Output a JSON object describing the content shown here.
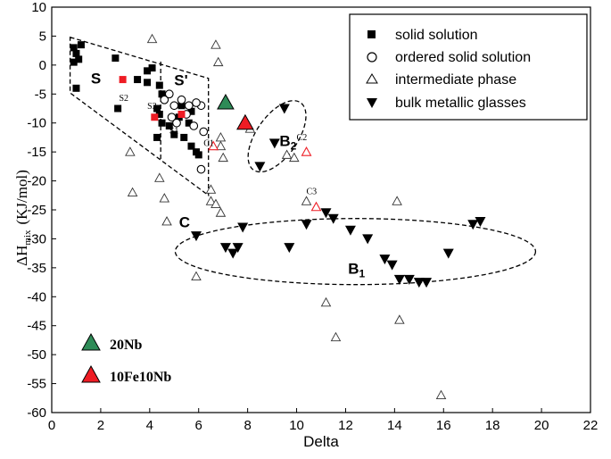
{
  "chart_data": {
    "type": "scatter",
    "xlabel": "Delta",
    "ylabel_main": "ΔH",
    "ylabel_sub": "mix",
    "ylabel_unit": "(KJ/mol)",
    "xlim": [
      0,
      22
    ],
    "ylim": [
      -60,
      10
    ],
    "xticks": [
      0,
      2,
      4,
      6,
      8,
      10,
      12,
      14,
      16,
      18,
      20,
      22
    ],
    "yticks": [
      10,
      5,
      0,
      -5,
      -10,
      -15,
      -20,
      -25,
      -30,
      -35,
      -40,
      -45,
      -50,
      -55,
      -60
    ],
    "legend_position": "top-right",
    "series": [
      {
        "name": "solid solution",
        "marker": "filled-square",
        "points": [
          [
            0.9,
            3.0
          ],
          [
            1.0,
            2.0
          ],
          [
            1.1,
            1.0
          ],
          [
            0.9,
            0.5
          ],
          [
            1.2,
            3.5
          ],
          [
            1.0,
            -4.0
          ],
          [
            2.6,
            1.2
          ],
          [
            2.7,
            -7.5
          ],
          [
            3.5,
            -2.5
          ],
          [
            3.9,
            -1.0
          ],
          [
            3.9,
            -3.0
          ],
          [
            4.1,
            -0.5
          ],
          [
            4.4,
            -3.5
          ],
          [
            4.5,
            -5.0
          ],
          [
            4.3,
            -7.5
          ],
          [
            4.4,
            -8.5
          ],
          [
            4.5,
            -10.0
          ],
          [
            4.3,
            -12.5
          ],
          [
            4.8,
            -10.5
          ],
          [
            5.2,
            -9.0
          ],
          [
            5.0,
            -12.0
          ],
          [
            5.4,
            -12.5
          ],
          [
            5.6,
            -10.0
          ],
          [
            5.7,
            -14.0
          ],
          [
            5.9,
            -15.0
          ],
          [
            6.0,
            -15.5
          ],
          [
            5.3,
            -7.0
          ],
          [
            5.7,
            -8.0
          ]
        ]
      },
      {
        "name": "ordered solid solution",
        "marker": "open-circle",
        "points": [
          [
            4.6,
            -6.0
          ],
          [
            4.8,
            -5.0
          ],
          [
            5.0,
            -7.0
          ],
          [
            5.3,
            -6.0
          ],
          [
            4.9,
            -9.0
          ],
          [
            5.1,
            -10.0
          ],
          [
            5.5,
            -8.5
          ],
          [
            5.6,
            -7.0
          ],
          [
            5.8,
            -10.5
          ],
          [
            6.1,
            -7.0
          ],
          [
            6.2,
            -11.5
          ],
          [
            6.1,
            -18.0
          ],
          [
            5.9,
            -6.5
          ]
        ]
      },
      {
        "name": "intermediate phase",
        "marker": "open-triangle",
        "points": [
          [
            4.1,
            4.5
          ],
          [
            6.7,
            3.5
          ],
          [
            6.8,
            0.5
          ],
          [
            6.9,
            -12.5
          ],
          [
            6.9,
            -14.0
          ],
          [
            7.0,
            -16.0
          ],
          [
            3.2,
            -15.0
          ],
          [
            3.3,
            -22.0
          ],
          [
            4.4,
            -19.5
          ],
          [
            4.6,
            -23.0
          ],
          [
            4.7,
            -27.0
          ],
          [
            6.5,
            -21.5
          ],
          [
            6.5,
            -23.5
          ],
          [
            6.7,
            -24.0
          ],
          [
            6.9,
            -25.5
          ],
          [
            5.9,
            -36.5
          ],
          [
            8.1,
            -11.0
          ],
          [
            9.6,
            -15.5
          ],
          [
            9.9,
            -16.0
          ],
          [
            10.4,
            -23.5
          ],
          [
            11.2,
            -41.0
          ],
          [
            11.6,
            -47.0
          ],
          [
            14.1,
            -23.5
          ],
          [
            14.2,
            -44.0
          ],
          [
            15.9,
            -57.0
          ]
        ]
      },
      {
        "name": "bulk metallic glasses",
        "marker": "filled-inverted-triangle",
        "points": [
          [
            5.9,
            -29.5
          ],
          [
            7.1,
            -31.5
          ],
          [
            7.4,
            -32.5
          ],
          [
            7.6,
            -31.5
          ],
          [
            7.8,
            -28.0
          ],
          [
            8.5,
            -17.5
          ],
          [
            9.5,
            -7.5
          ],
          [
            9.1,
            -13.5
          ],
          [
            9.7,
            -31.5
          ],
          [
            10.4,
            -27.5
          ],
          [
            11.2,
            -25.5
          ],
          [
            11.5,
            -26.5
          ],
          [
            12.2,
            -28.5
          ],
          [
            12.9,
            -30.0
          ],
          [
            13.6,
            -33.5
          ],
          [
            13.9,
            -34.5
          ],
          [
            14.2,
            -37.0
          ],
          [
            14.6,
            -37.0
          ],
          [
            15.0,
            -37.5
          ],
          [
            15.3,
            -37.5
          ],
          [
            16.2,
            -32.5
          ],
          [
            17.2,
            -27.5
          ],
          [
            17.5,
            -27.0
          ]
        ]
      },
      {
        "name": "20Nb",
        "marker": "filled-triangle-green",
        "color": "#2e8b57",
        "points": [
          [
            7.1,
            -6.5
          ]
        ]
      },
      {
        "name": "10Fe10Nb",
        "marker": "filled-triangle-red",
        "color": "#ee1c24",
        "points": [
          [
            7.9,
            -10.0
          ]
        ]
      },
      {
        "name": "red points",
        "marker": "mixed-red",
        "color": "#ee1c24",
        "points": [
          [
            2.9,
            -2.5
          ],
          [
            4.2,
            -9.0
          ],
          [
            6.6,
            -14.0
          ],
          [
            10.4,
            -15.0
          ],
          [
            10.8,
            -24.5
          ],
          [
            5.3,
            -8.5
          ]
        ]
      }
    ],
    "region_labels": [
      "S",
      "S'",
      "B2",
      "C",
      "B1"
    ],
    "point_labels": [
      "S2",
      "S3",
      "S1",
      "C1",
      "C2",
      "C3"
    ],
    "inset_legend": [
      "20Nb",
      "10Fe10Nb"
    ]
  }
}
